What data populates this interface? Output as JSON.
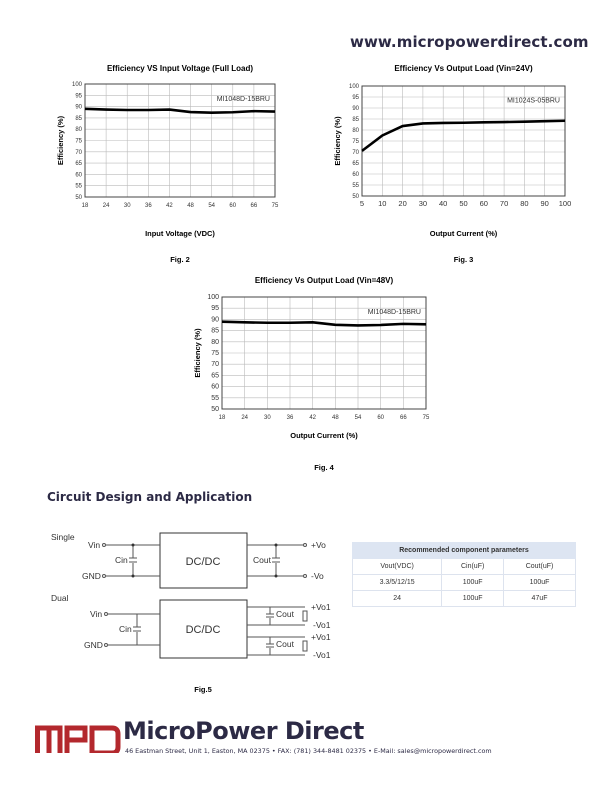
{
  "header": {
    "url": "www.micropowerdirect.com"
  },
  "chart_data": [
    {
      "type": "line",
      "title": "Efficiency VS Input Voltage (Full Load)",
      "xlabel": "Input Voltage (VDC)",
      "ylabel": "Efficiency (%)",
      "figure": "Fig. 2",
      "annotation": "MI1048D-15BRU",
      "x_ticks": [
        "18",
        "24",
        "30",
        "36",
        "42",
        "48",
        "54",
        "60",
        "66",
        "75"
      ],
      "y_ticks": [
        100,
        95,
        90,
        85,
        80,
        75,
        70,
        65,
        60,
        55,
        50
      ],
      "ylim": [
        50,
        100
      ],
      "grid": true,
      "series": [
        {
          "x": [
            "18",
            "24",
            "30",
            "36",
            "42",
            "48",
            "54",
            "60",
            "66",
            "75"
          ],
          "values": [
            89,
            88.7,
            88.5,
            88.5,
            88.7,
            87.6,
            87.3,
            87.5,
            88,
            87.8
          ]
        }
      ]
    },
    {
      "type": "line",
      "title": "Efficiency Vs Output Load (Vin=24V)",
      "xlabel": "Output Current (%)",
      "ylabel": "Efficiency (%)",
      "figure": "Fig. 3",
      "annotation": "MI1024S-05BRU",
      "x_ticks": [
        "5",
        "10",
        "20",
        "30",
        "40",
        "50",
        "60",
        "70",
        "80",
        "90",
        "100"
      ],
      "y_ticks": [
        100,
        95,
        90,
        85,
        80,
        75,
        70,
        65,
        60,
        55,
        50
      ],
      "ylim": [
        50,
        100
      ],
      "grid": true,
      "series": [
        {
          "x": [
            "5",
            "10",
            "20",
            "30",
            "40",
            "50",
            "60",
            "70",
            "80",
            "90",
            "100"
          ],
          "values": [
            70.5,
            77.5,
            81.8,
            83,
            83.2,
            83.3,
            83.5,
            83.6,
            83.8,
            84,
            84.2
          ]
        }
      ]
    },
    {
      "type": "line",
      "title": "Efficiency Vs Output Load  (Vin=48V)",
      "xlabel": "Output Current (%)",
      "ylabel": "Efficiency (%)",
      "figure": "Fig. 4",
      "annotation": "MI1048D-15BRU",
      "x_ticks": [
        "18",
        "24",
        "30",
        "36",
        "42",
        "48",
        "54",
        "60",
        "66",
        "75"
      ],
      "y_ticks": [
        100,
        95,
        90,
        85,
        80,
        75,
        70,
        65,
        60,
        55,
        50
      ],
      "ylim": [
        50,
        100
      ],
      "grid": true,
      "series": [
        {
          "x": [
            "18",
            "24",
            "30",
            "36",
            "42",
            "48",
            "54",
            "60",
            "66",
            "75"
          ],
          "values": [
            89,
            88.7,
            88.5,
            88.5,
            88.7,
            87.6,
            87.3,
            87.5,
            88,
            87.8
          ]
        }
      ]
    }
  ],
  "section": {
    "title": "Circuit Design and Application"
  },
  "circuit": {
    "single_label": "Single",
    "dual_label": "Dual",
    "vin": "Vin",
    "gnd": "GND",
    "cin": "Cin",
    "cout": "Cout",
    "block": "DC/DC",
    "plus_vo": "+Vo",
    "minus_vo": "-Vo",
    "plus_vo1": "+Vo1",
    "minus_vo1": "-Vo1",
    "figure": "Fig.5"
  },
  "table": {
    "title": "Recommended component parameters",
    "columns": [
      "Vout(VDC)",
      "Cin(uF)",
      "Cout(uF)"
    ],
    "rows": [
      [
        "3.3/5/12/15",
        "100uF",
        "100uF"
      ],
      [
        "24",
        "100uF",
        "47uF"
      ]
    ]
  },
  "footer": {
    "logo_text": "MPD",
    "company": "MicroPower Direct",
    "address": "46 Eastman Street, Unit 1, Easton, MA 02375 • FAX: (781) 344-8481 02375 • E-Mail: sales@micropowerdirect.com",
    "brand_red": "#b3282d",
    "brand_navy": "#2c2a45"
  }
}
